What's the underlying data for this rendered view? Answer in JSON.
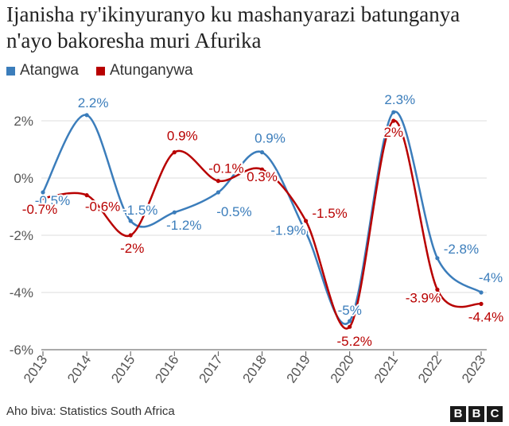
{
  "chart_data": {
    "type": "line",
    "title": "Ijanisha ry'ikinyuranyo ku mashanyarazi batunganya n'ayo bakoresha muri Afurika",
    "x": [
      "2013",
      "2014",
      "2015",
      "2016",
      "2017",
      "2018",
      "2019",
      "2020",
      "2021",
      "2022",
      "2023"
    ],
    "ylim": [
      -6,
      2.5
    ],
    "yticks": [
      2,
      0,
      -2,
      -4,
      -6
    ],
    "ytick_labels": [
      "2%",
      "0%",
      "-2%",
      "-4%",
      "-6%"
    ],
    "grid": true,
    "legend_position": "top-left",
    "series": [
      {
        "name": "Atangwa",
        "color": "#3b7dbb",
        "values": [
          -0.5,
          2.2,
          -1.5,
          -1.2,
          -0.5,
          0.9,
          -1.9,
          -5,
          2.3,
          -2.8,
          -4
        ],
        "labels": [
          "-0.5%",
          "2.2%",
          "-1.5%",
          "-1.2%",
          "-0.5%",
          "0.9%",
          "-1.9%",
          "-5%",
          "2.3%",
          "-2.8%",
          "-4%"
        ]
      },
      {
        "name": "Atunganywa",
        "color": "#b80000",
        "values": [
          -0.7,
          -0.6,
          -2,
          0.9,
          -0.1,
          0.3,
          -1.5,
          -5.2,
          2,
          -3.9,
          -4.4
        ],
        "labels": [
          "-0.7%",
          "-0.6%",
          "-2%",
          "0.9%",
          "-0.1%",
          "0.3%",
          "-1.5%",
          "-5.2%",
          "2%",
          "-3.9%",
          "-4.4%"
        ]
      }
    ]
  },
  "source": "Aho biva: Statistics South Africa",
  "logo": [
    "B",
    "B",
    "C"
  ]
}
